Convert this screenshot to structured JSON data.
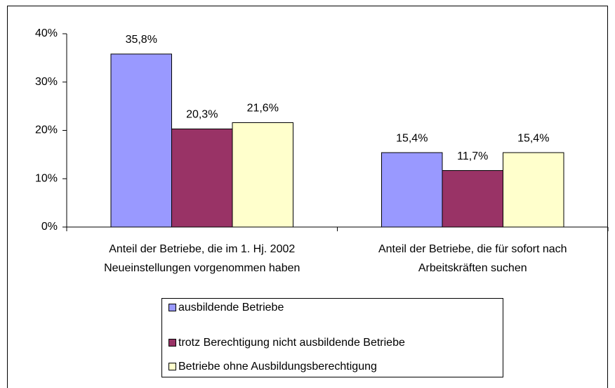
{
  "chart_data": {
    "type": "bar",
    "categories": [
      [
        "Anteil der Betriebe, die im 1. Hj. 2002",
        "Neueinstellungen vorgenommen haben"
      ],
      [
        "Anteil der Betriebe, die für sofort nach",
        "Arbeitskräften suchen"
      ]
    ],
    "series": [
      {
        "name": "ausbildende Betriebe",
        "color": "#9999ff",
        "values": [
          35.8,
          15.4
        ],
        "value_labels": [
          "35,8%",
          "15,4%"
        ]
      },
      {
        "name": "trotz Berechtigung nicht ausbildende Betriebe",
        "color": "#993366",
        "values": [
          20.3,
          11.7
        ],
        "value_labels": [
          "20,3%",
          "11,7%"
        ]
      },
      {
        "name": "Betriebe ohne Ausbildungsberechtigung",
        "color": "#ffffcc",
        "values": [
          21.6,
          15.4
        ],
        "value_labels": [
          "21,6%",
          "15,4%"
        ]
      }
    ],
    "ylim": [
      0,
      40
    ],
    "yticks": [
      {
        "value": 0,
        "label": "0%"
      },
      {
        "value": 10,
        "label": "10%"
      },
      {
        "value": 20,
        "label": "20%"
      },
      {
        "value": 30,
        "label": "30%"
      },
      {
        "value": 40,
        "label": "40%"
      }
    ],
    "grid": false,
    "legend": "bottom"
  }
}
